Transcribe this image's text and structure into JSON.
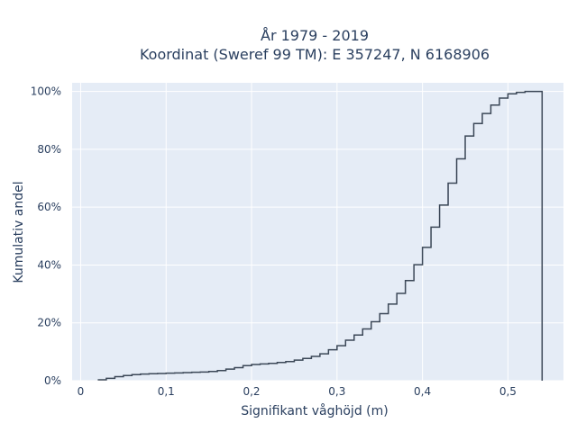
{
  "chart_data": {
    "type": "line",
    "step": true,
    "title_line1": "År 1979 - 2019",
    "title_line2": "Koordinat (Sweref 99 TM): E 357247, N 6168906",
    "xlabel": "Signifikant våghöjd (m)",
    "ylabel": "Kumulativ andel",
    "xlim": [
      -0.01,
      0.565
    ],
    "ylim": [
      0,
      1.03
    ],
    "x_ticks": [
      0,
      0.1,
      0.2,
      0.3,
      0.4,
      0.5
    ],
    "x_tick_labels": [
      "0",
      "0,1",
      "0,2",
      "0,3",
      "0,4",
      "0,5"
    ],
    "y_ticks": [
      0,
      0.2,
      0.4,
      0.6,
      0.8,
      1.0
    ],
    "y_tick_labels": [
      "0%",
      "20%",
      "40%",
      "60%",
      "80%",
      "100%"
    ],
    "grid": true,
    "plot_background": "#e5ecf6",
    "grid_color": "#ffffff",
    "line_color": "#3b4757",
    "x_start": 0.02,
    "x_end": 0.54,
    "bin_width": 0.01,
    "values": [
      0.003,
      0.008,
      0.014,
      0.018,
      0.021,
      0.023,
      0.024,
      0.025,
      0.026,
      0.027,
      0.028,
      0.029,
      0.03,
      0.032,
      0.035,
      0.04,
      0.045,
      0.052,
      0.056,
      0.058,
      0.06,
      0.063,
      0.066,
      0.071,
      0.077,
      0.084,
      0.093,
      0.107,
      0.121,
      0.14,
      0.158,
      0.179,
      0.204,
      0.232,
      0.265,
      0.302,
      0.346,
      0.401,
      0.461,
      0.531,
      0.607,
      0.683,
      0.767,
      0.846,
      0.889,
      0.924,
      0.953,
      0.977,
      0.992,
      0.997,
      1.0,
      1.0
    ],
    "final_drop_to": 0
  }
}
